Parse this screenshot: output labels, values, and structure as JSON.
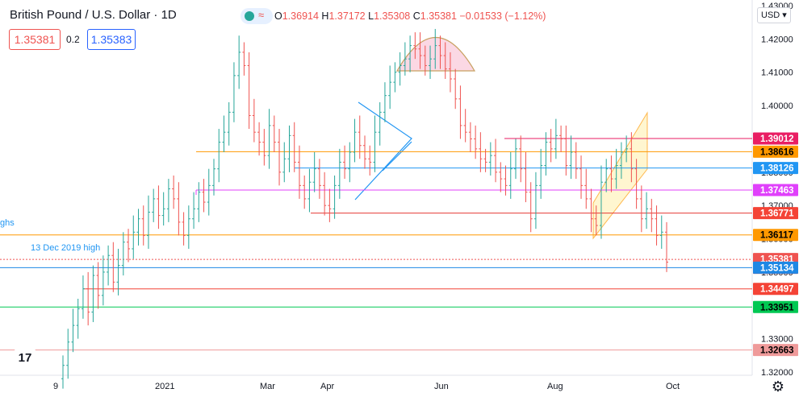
{
  "header": {
    "title": "British Pound / U.S. Dollar · 1D",
    "ohlc": {
      "o_label": "O",
      "o": "1.36914",
      "h_label": "H",
      "h": "1.37172",
      "l_label": "L",
      "l": "1.35308",
      "c_label": "C",
      "c": "1.35381",
      "change": "−0.01533 (−1.12%)"
    },
    "sell_price": "1.35381",
    "spread": "0.2",
    "buy_price": "1.35383"
  },
  "currency_selector": "USD",
  "annotations": {
    "highs_label": "ghs",
    "dec2019": "13 Dec 2019 high"
  },
  "colors": {
    "up": "#26a69a",
    "down": "#ef5350",
    "orange": "#ff9800",
    "blue": "#2196f3",
    "magenta": "#e91e63",
    "red": "#f44336",
    "green": "#00e676",
    "pink": "#f48fb1"
  },
  "chart_data": {
    "type": "candlestick",
    "ylim": [
      1.3185,
      1.4305
    ],
    "y_ticks": [
      "1.43000",
      "1.42000",
      "1.41000",
      "1.40000",
      "1.39000",
      "1.38000",
      "1.37000",
      "1.36000",
      "1.35000",
      "1.34000",
      "1.33000",
      "1.32000"
    ],
    "x_ticks": [
      "9",
      "2021",
      "Mar",
      "Apr",
      "Jun",
      "Aug",
      "Oct"
    ],
    "series_close": [
      1.322,
      1.329,
      1.334,
      1.339,
      1.345,
      1.338,
      1.349,
      1.343,
      1.35,
      1.355,
      1.347,
      1.352,
      1.359,
      1.357,
      1.362,
      1.366,
      1.361,
      1.368,
      1.372,
      1.367,
      1.369,
      1.375,
      1.372,
      1.365,
      1.361,
      1.366,
      1.369,
      1.374,
      1.371,
      1.376,
      1.381,
      1.389,
      1.392,
      1.398,
      1.409,
      1.416,
      1.412,
      1.397,
      1.392,
      1.389,
      1.385,
      1.394,
      1.389,
      1.38,
      1.384,
      1.391,
      1.383,
      1.376,
      1.372,
      1.377,
      1.381,
      1.376,
      1.37,
      1.369,
      1.376,
      1.383,
      1.381,
      1.386,
      1.392,
      1.388,
      1.384,
      1.383,
      1.392,
      1.398,
      1.403,
      1.407,
      1.41,
      1.412,
      1.414,
      1.418,
      1.417,
      1.415,
      1.412,
      1.414,
      1.418,
      1.415,
      1.411,
      1.408,
      1.402,
      1.394,
      1.392,
      1.39,
      1.387,
      1.384,
      1.383,
      1.385,
      1.38,
      1.378,
      1.376,
      1.381,
      1.387,
      1.381,
      1.374,
      1.366,
      1.376,
      1.382,
      1.389,
      1.387,
      1.391,
      1.39,
      1.382,
      1.386,
      1.381,
      1.376,
      1.372,
      1.366,
      1.364,
      1.377,
      1.381,
      1.378,
      1.382,
      1.386,
      1.387,
      1.381,
      1.372,
      1.366,
      1.369,
      1.366,
      1.361,
      1.362,
      1.353
    ],
    "levels": [
      {
        "value": 1.39012,
        "label": "1.39012"
      },
      {
        "value": 1.38616,
        "label": "1.38616"
      },
      {
        "value": 1.38126,
        "label": "1.38126"
      },
      {
        "value": 1.37463,
        "label": "1.37463"
      },
      {
        "value": 1.36771,
        "label": "1.36771"
      },
      {
        "value": 1.36117,
        "label": "1.36117"
      },
      {
        "value": 1.35381,
        "label": "1.35381",
        "sub": "08:03:47"
      },
      {
        "value": 1.35134,
        "label": "1.35134"
      },
      {
        "value": 1.34497,
        "label": "1.34497"
      },
      {
        "value": 1.33951,
        "label": "1.33951"
      },
      {
        "value": 1.32663,
        "label": "1.32663"
      }
    ]
  }
}
